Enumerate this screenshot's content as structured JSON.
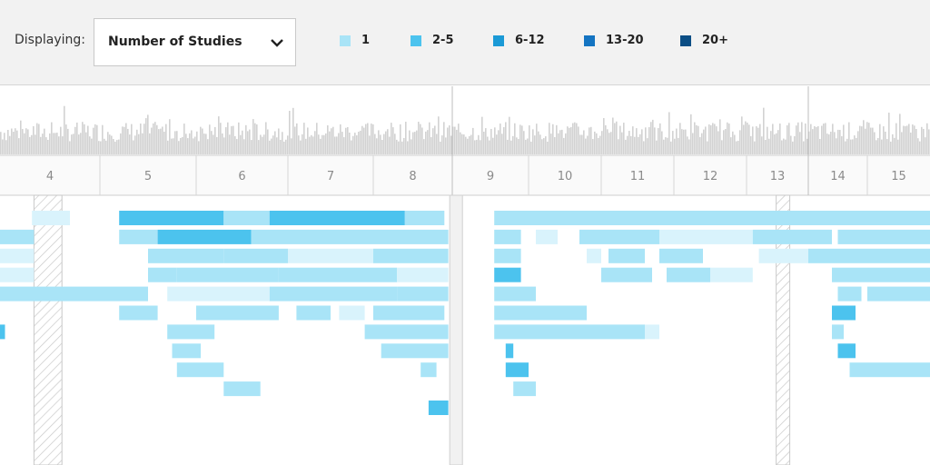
{
  "filter": {
    "label": "Displaying:",
    "selected": "Number of Studies"
  },
  "legend": [
    {
      "label": "1",
      "color": "#a9e4f7"
    },
    {
      "label": "2-5",
      "color": "#4cc3ee"
    },
    {
      "label": "6-12",
      "color": "#1b9ad6"
    },
    {
      "label": "13-20",
      "color": "#1474c2"
    },
    {
      "label": "20+",
      "color": "#0b4e85"
    }
  ],
  "chart_data": {
    "type": "timeline",
    "x_ticks": [
      "4",
      "5",
      "6",
      "7",
      "8",
      "9",
      "10",
      "11",
      "12",
      "13",
      "14",
      "15"
    ],
    "rows": [
      {
        "segments": [
          [
            3.82,
            4.2,
            "light"
          ],
          [
            4.7,
            5.8,
            "2-5"
          ],
          [
            5.8,
            6.3,
            "1"
          ],
          [
            6.3,
            7.9,
            "2-5"
          ],
          [
            7.9,
            8.4,
            "1"
          ],
          [
            9.05,
            15.5,
            "1"
          ]
        ]
      },
      {
        "segments": [
          [
            3.5,
            3.84,
            "1"
          ],
          [
            4.7,
            5.1,
            "1"
          ],
          [
            5.1,
            6.1,
            "2-5"
          ],
          [
            6.1,
            8.45,
            "1"
          ],
          [
            9.05,
            9.4,
            "1"
          ],
          [
            9.6,
            9.9,
            "light"
          ],
          [
            10.2,
            11.3,
            "1"
          ],
          [
            11.3,
            12.6,
            "light"
          ],
          [
            12.6,
            13.9,
            "1"
          ],
          [
            14.0,
            15.5,
            "1"
          ]
        ]
      },
      {
        "segments": [
          [
            3.5,
            3.84,
            "light"
          ],
          [
            5.0,
            5.8,
            "1"
          ],
          [
            5.8,
            6.5,
            "1"
          ],
          [
            6.5,
            7.5,
            "light"
          ],
          [
            7.5,
            8.45,
            "1"
          ],
          [
            9.05,
            9.4,
            "1"
          ],
          [
            10.3,
            10.5,
            "light"
          ],
          [
            10.6,
            11.1,
            "1"
          ],
          [
            11.3,
            11.9,
            "1"
          ],
          [
            12.7,
            13.5,
            "light"
          ],
          [
            13.5,
            14.3,
            "1"
          ],
          [
            14.3,
            15.5,
            "1"
          ]
        ]
      },
      {
        "segments": [
          [
            3.5,
            3.84,
            "light"
          ],
          [
            5.0,
            5.3,
            "1"
          ],
          [
            5.3,
            6.4,
            "1"
          ],
          [
            6.4,
            7.8,
            "1"
          ],
          [
            7.8,
            8.45,
            "light"
          ],
          [
            9.05,
            9.4,
            "2-5"
          ],
          [
            10.5,
            11.2,
            "1"
          ],
          [
            11.4,
            12.0,
            "1"
          ],
          [
            12.0,
            12.6,
            "light"
          ],
          [
            13.9,
            14.4,
            "1"
          ],
          [
            14.4,
            15.5,
            "1"
          ]
        ]
      },
      {
        "segments": [
          [
            3.5,
            4.5,
            "1"
          ],
          [
            4.5,
            5.0,
            "1"
          ],
          [
            5.2,
            6.3,
            "light"
          ],
          [
            6.3,
            7.8,
            "1"
          ],
          [
            7.8,
            8.45,
            "1"
          ],
          [
            9.05,
            9.6,
            "1"
          ],
          [
            14.0,
            14.4,
            "1"
          ],
          [
            14.5,
            15.5,
            "1"
          ]
        ]
      },
      {
        "segments": [
          [
            4.7,
            5.1,
            "1"
          ],
          [
            5.5,
            6.4,
            "1"
          ],
          [
            6.6,
            7.0,
            "1"
          ],
          [
            7.1,
            7.4,
            "light"
          ],
          [
            7.5,
            8.4,
            "1"
          ],
          [
            9.05,
            10.3,
            "1"
          ],
          [
            13.9,
            14.3,
            "2-5"
          ]
        ]
      },
      {
        "segments": [
          [
            3.5,
            3.55,
            "2-5"
          ],
          [
            5.2,
            5.7,
            "1"
          ],
          [
            7.4,
            8.45,
            "1"
          ],
          [
            9.05,
            11.1,
            "1"
          ],
          [
            11.1,
            11.3,
            "light"
          ],
          [
            13.9,
            14.1,
            "1"
          ]
        ]
      },
      {
        "segments": [
          [
            5.25,
            5.55,
            "1"
          ],
          [
            7.6,
            8.45,
            "1"
          ],
          [
            9.2,
            9.3,
            "2-5"
          ],
          [
            14.0,
            14.3,
            "2-5"
          ]
        ]
      },
      {
        "segments": [
          [
            5.3,
            5.8,
            "1"
          ],
          [
            8.1,
            8.3,
            "1"
          ],
          [
            9.2,
            9.5,
            "2-5"
          ],
          [
            14.2,
            15.5,
            "1"
          ]
        ]
      },
      {
        "segments": [
          [
            5.8,
            6.2,
            "1"
          ],
          [
            9.3,
            9.6,
            "1"
          ]
        ]
      },
      {
        "segments": [
          [
            8.2,
            8.45,
            "2-5"
          ]
        ]
      }
    ],
    "selected_ranges": [
      [
        3.84,
        4.12
      ],
      [
        12.98,
        13.2
      ]
    ],
    "current_marker": 8.55,
    "title": "",
    "xlabel": "",
    "ylabel": ""
  }
}
